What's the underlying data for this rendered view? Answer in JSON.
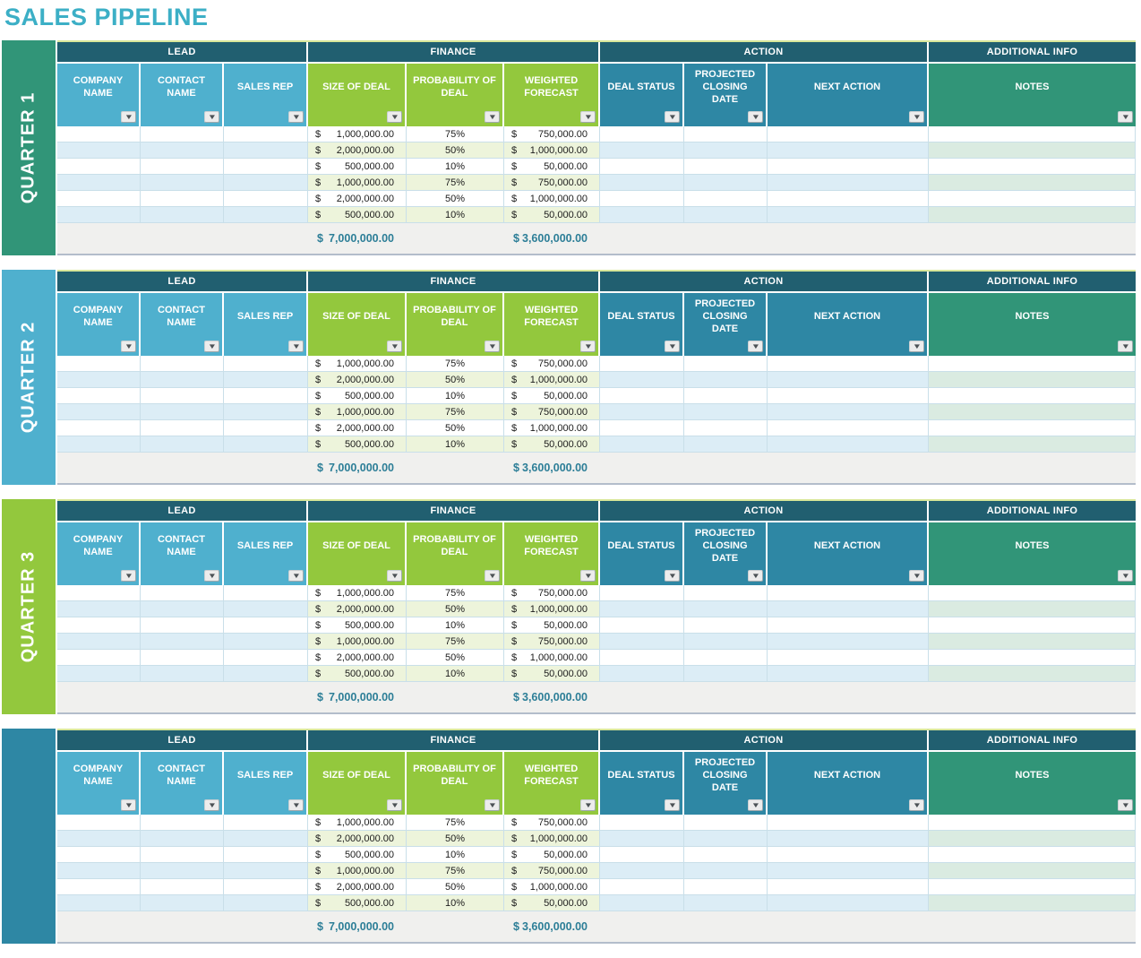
{
  "page_title": "SALES PIPELINE",
  "icons": {
    "filter_dropdown": "▼"
  },
  "colors": {
    "title": "#3CAFC6",
    "group_header_bg": "#215F70",
    "lead_header_bg": "#4FB0CE",
    "finance_header_bg": "#93C83D",
    "action_header_bg": "#2E87A4",
    "notes_header_bg": "#319578",
    "row_alt_blue": "#DCEDF6",
    "row_alt_green": "#EDF4DB",
    "row_alt_mint": "#DAEBE1",
    "total_row_bg": "#F0F0EE",
    "total_text": "#2C7E97"
  },
  "quarters": [
    {
      "label": "QUARTER 1",
      "color": "#319578"
    },
    {
      "label": "QUARTER 2",
      "color": "#4FB0CE"
    },
    {
      "label": "QUARTER 3",
      "color": "#93C83D"
    },
    {
      "label": "",
      "color": "#2E87A4"
    }
  ],
  "table": {
    "groups": [
      {
        "label": "LEAD",
        "columns": [
          "COMPANY NAME",
          "CONTACT NAME",
          "SALES REP"
        ]
      },
      {
        "label": "FINANCE",
        "columns": [
          "SIZE OF DEAL",
          "PROBABILITY OF DEAL",
          "WEIGHTED FORECAST"
        ]
      },
      {
        "label": "ACTION",
        "columns": [
          "DEAL STATUS",
          "PROJECTED CLOSING DATE",
          "NEXT ACTION"
        ]
      },
      {
        "label": "ADDITIONAL INFO",
        "columns": [
          "NOTES"
        ]
      }
    ],
    "currency_symbol": "$",
    "rows": [
      {
        "size_of_deal": "1,000,000.00",
        "probability": "75%",
        "weighted_forecast": "750,000.00"
      },
      {
        "size_of_deal": "2,000,000.00",
        "probability": "50%",
        "weighted_forecast": "1,000,000.00"
      },
      {
        "size_of_deal": "500,000.00",
        "probability": "10%",
        "weighted_forecast": "50,000.00"
      },
      {
        "size_of_deal": "1,000,000.00",
        "probability": "75%",
        "weighted_forecast": "750,000.00"
      },
      {
        "size_of_deal": "2,000,000.00",
        "probability": "50%",
        "weighted_forecast": "1,000,000.00"
      },
      {
        "size_of_deal": "500,000.00",
        "probability": "10%",
        "weighted_forecast": "50,000.00"
      }
    ],
    "totals": {
      "size_of_deal": "7,000,000.00",
      "weighted_forecast": "3,600,000.00"
    }
  }
}
